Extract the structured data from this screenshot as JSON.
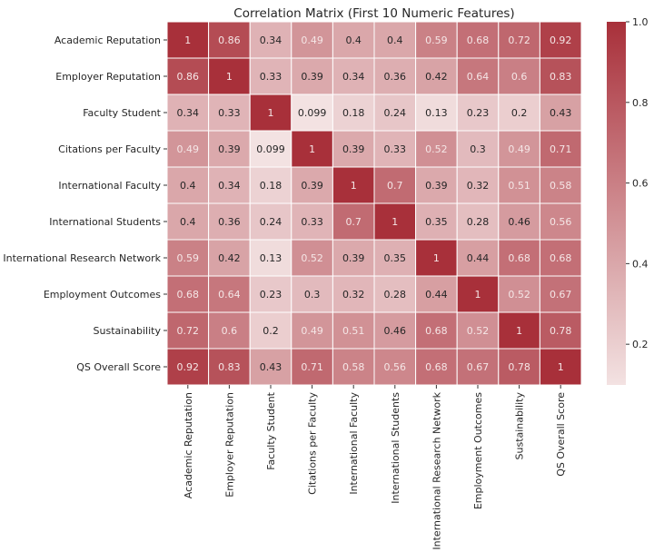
{
  "chart_data": {
    "type": "heatmap",
    "title": "Correlation Matrix (First 10 Numeric Features)",
    "xlabel": "",
    "ylabel": "",
    "labels": [
      "Academic Reputation",
      "Employer Reputation",
      "Faculty Student",
      "Citations per Faculty",
      "International Faculty",
      "International Students",
      "International Research Network",
      "Employment Outcomes",
      "Sustainability",
      "QS Overall Score"
    ],
    "matrix": [
      [
        1,
        0.86,
        0.34,
        0.49,
        0.4,
        0.4,
        0.59,
        0.68,
        0.72,
        0.92
      ],
      [
        0.86,
        1,
        0.33,
        0.39,
        0.34,
        0.36,
        0.42,
        0.64,
        0.6,
        0.83
      ],
      [
        0.34,
        0.33,
        1,
        0.099,
        0.18,
        0.24,
        0.13,
        0.23,
        0.2,
        0.43
      ],
      [
        0.49,
        0.39,
        0.099,
        1,
        0.39,
        0.33,
        0.52,
        0.3,
        0.49,
        0.71
      ],
      [
        0.4,
        0.34,
        0.18,
        0.39,
        1,
        0.7,
        0.39,
        0.32,
        0.51,
        0.58
      ],
      [
        0.4,
        0.36,
        0.24,
        0.33,
        0.7,
        1,
        0.35,
        0.28,
        0.46,
        0.56
      ],
      [
        0.59,
        0.42,
        0.13,
        0.52,
        0.39,
        0.35,
        1,
        0.44,
        0.68,
        0.68
      ],
      [
        0.68,
        0.64,
        0.23,
        0.3,
        0.32,
        0.28,
        0.44,
        1,
        0.52,
        0.67
      ],
      [
        0.72,
        0.6,
        0.2,
        0.49,
        0.51,
        0.46,
        0.68,
        0.52,
        1,
        0.78
      ],
      [
        0.92,
        0.83,
        0.43,
        0.71,
        0.58,
        0.56,
        0.68,
        0.67,
        0.78,
        1
      ]
    ],
    "annotations": true,
    "colorbar": {
      "range": [
        0.099,
        1.0
      ],
      "ticks": [
        0.2,
        0.4,
        0.6,
        0.8,
        1.0
      ],
      "tick_labels": [
        "0.2",
        "0.4",
        "0.6",
        "0.8",
        "1.0"
      ],
      "placement": "right"
    },
    "colormap": {
      "low": "#f3e2e2",
      "high": "#a8303a"
    },
    "text_colors": {
      "light": "#f5e6e6",
      "dark": "#262626"
    },
    "grid_line_color": "#ffffff"
  }
}
